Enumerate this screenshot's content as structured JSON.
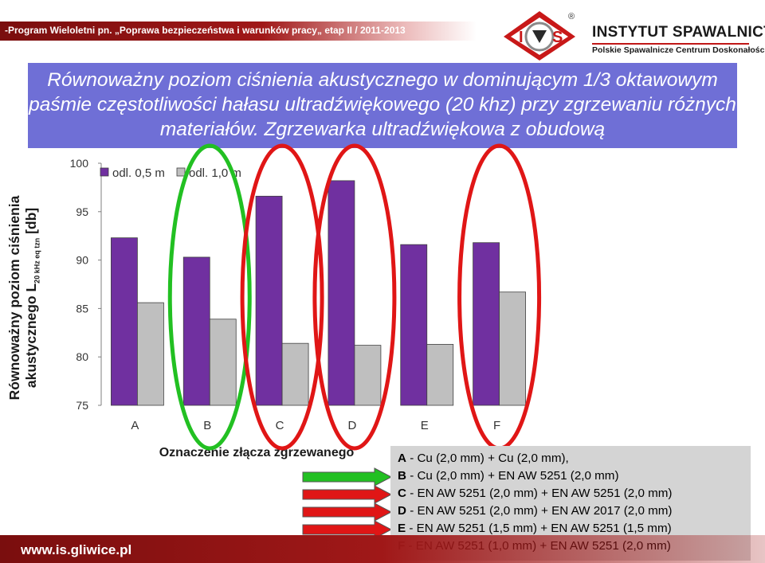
{
  "header": {
    "program_text": "-Program Wieloletni pn. „Poprawa bezpieczeństwa i warunków pracy„ etap II / 2011-2013",
    "institute_name": "INSTYTUT SPAWALNICTWA",
    "institute_subtitle": "Polskie Spawalnicze Centrum Doskonałości",
    "logo": {
      "left": "I",
      "right": "S",
      "registered": "®"
    }
  },
  "slide_title": "Równoważny poziom ciśnienia akustycznego w dominującym 1/3 oktawowym paśmie częstotliwości hałasu ultradźwiękowego (20 khz) przy zgrzewaniu różnych materiałów. Zgrzewarka ultradźwiękowa z obudową",
  "y_axis_label": {
    "line1": "Równoważny poziom ciśnienia",
    "line2_main": "akustycznego L",
    "line2_sub": "20 kHz eq tzn",
    "line2_unit": " [db]"
  },
  "chart_data": {
    "type": "bar",
    "categories": [
      "A",
      "B",
      "C",
      "D",
      "E",
      "F"
    ],
    "series": [
      {
        "name": "odl. 0,5 m",
        "values": [
          92.3,
          90.3,
          96.6,
          98.2,
          91.6,
          91.8
        ]
      },
      {
        "name": "odl. 1,0 m",
        "values": [
          85.6,
          83.9,
          81.4,
          81.2,
          81.3,
          86.7
        ]
      }
    ],
    "yticks": [
      75,
      80,
      85,
      90,
      95,
      100
    ],
    "ylim": [
      75,
      100
    ],
    "xlabel": "Oznaczenie złącza zgrzewanego",
    "legend_position": "top-left",
    "highlight": {
      "green": [
        "B"
      ],
      "red": [
        "C",
        "D",
        "F"
      ]
    },
    "colors": {
      "series1": "#7030a0",
      "series2": "#bfbfbf",
      "green": "#22c022",
      "red": "#e01616"
    }
  },
  "legend_lines": [
    {
      "code": "A",
      "text": " - Cu (2,0 mm) + Cu (2,0 mm),"
    },
    {
      "code": "B",
      "text": " - Cu (2,0 mm) + EN AW 5251 (2,0 mm)"
    },
    {
      "code": "C",
      "text": " - EN AW 5251 (2,0 mm) + EN AW 5251 (2,0 mm)"
    },
    {
      "code": "D",
      "text": " - EN AW 5251 (2,0 mm) + EN AW 2017 (2,0 mm)"
    },
    {
      "code": "E",
      "text": " - EN AW 5251 (1,5 mm) + EN AW 5251 (1,5 mm)"
    },
    {
      "code": "F",
      "text": " - EN AW 5251 (1,0 mm) + EN AW 5251 (2,0 mm)"
    }
  ],
  "arrows": [
    "green",
    "red",
    "red",
    "red"
  ],
  "footer": {
    "url": "www.is.gliwice.pl"
  }
}
